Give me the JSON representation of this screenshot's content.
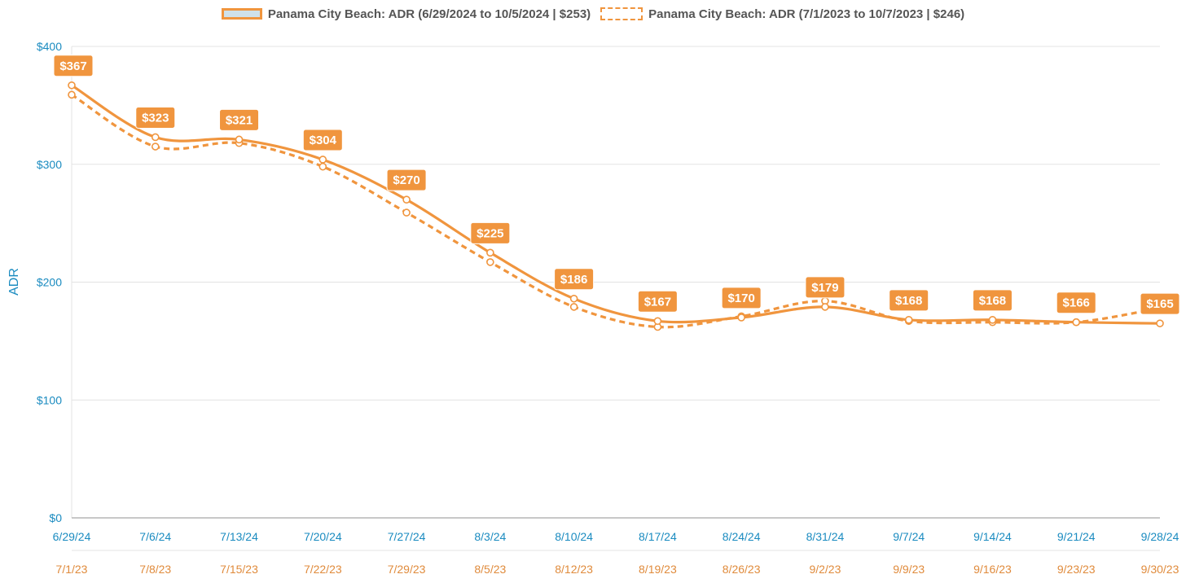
{
  "colors": {
    "series": "#f0953e",
    "label_bg": "#f0953e",
    "label_text": "#ffffff",
    "axis_text_current": "#1a8bc0",
    "axis_text_prior": "#e08b3c",
    "grid": "#e3e3e3",
    "legend_fill": "#cfe1ea"
  },
  "chart_data": {
    "type": "line",
    "ylabel": "ADR",
    "ylim": [
      0,
      400
    ],
    "yticks": [
      "$0",
      "$100",
      "$200",
      "$300",
      "$400"
    ],
    "grid": true,
    "legend_position": "top-center",
    "x_current": [
      "6/29/24",
      "7/6/24",
      "7/13/24",
      "7/20/24",
      "7/27/24",
      "8/3/24",
      "8/10/24",
      "8/17/24",
      "8/24/24",
      "8/31/24",
      "9/7/24",
      "9/14/24",
      "9/21/24",
      "9/28/24"
    ],
    "x_prior": [
      "7/1/23",
      "7/8/23",
      "7/15/23",
      "7/22/23",
      "7/29/23",
      "8/5/23",
      "8/12/23",
      "8/19/23",
      "8/26/23",
      "9/2/23",
      "9/9/23",
      "9/16/23",
      "9/23/23",
      "9/30/23"
    ],
    "series": [
      {
        "name": "Panama City Beach: ADR (6/29/2024 to 10/5/2024 | $253)",
        "style": "solid",
        "values": [
          367,
          323,
          321,
          304,
          270,
          225,
          186,
          167,
          170,
          179,
          168,
          168,
          166,
          165
        ],
        "labels": [
          "$367",
          "$323",
          "$321",
          "$304",
          "$270",
          "$225",
          "$186",
          "$167",
          "$170",
          "$179",
          "$168",
          "$168",
          "$166",
          "$165"
        ]
      },
      {
        "name": "Panama City Beach: ADR (7/1/2023 to 10/7/2023 | $246)",
        "style": "dashed",
        "values": [
          359,
          315,
          318,
          298,
          259,
          217,
          179,
          162,
          171,
          184,
          167,
          166,
          166,
          178
        ]
      }
    ]
  }
}
